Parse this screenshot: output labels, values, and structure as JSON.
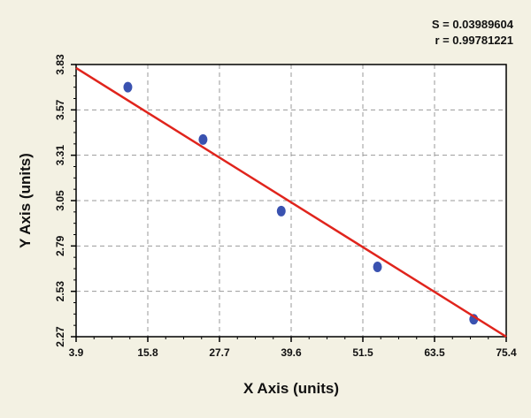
{
  "chart_data": {
    "type": "scatter",
    "xlabel": "X Axis (units)",
    "ylabel": "Y Axis (units)",
    "xlim": [
      3.9,
      75.4
    ],
    "ylim": [
      2.27,
      3.83
    ],
    "x_ticks": [
      "3.9",
      "15.8",
      "27.7",
      "39.6",
      "51.5",
      "63.5",
      "75.4"
    ],
    "y_ticks": [
      "2.27",
      "2.53",
      "2.79",
      "3.05",
      "3.31",
      "3.57",
      "3.83"
    ],
    "grid": true,
    "series": [
      {
        "type": "scatter",
        "color": "#3a52b0",
        "points": [
          {
            "x": 12.5,
            "y": 3.7
          },
          {
            "x": 25.0,
            "y": 3.4
          },
          {
            "x": 38.0,
            "y": 2.99
          },
          {
            "x": 54.0,
            "y": 2.67
          },
          {
            "x": 70.0,
            "y": 2.37
          }
        ]
      },
      {
        "type": "line",
        "color": "#e0241c",
        "points": [
          {
            "x": 3.9,
            "y": 3.81
          },
          {
            "x": 75.4,
            "y": 2.27
          }
        ]
      }
    ],
    "annotations": {
      "s_text": "S = 0.03989604",
      "r_text": "r = 0.99781221"
    },
    "colors": {
      "background": "#f3f1e3",
      "plot_background": "#ffffff",
      "grid": "#9a9a9a"
    }
  }
}
